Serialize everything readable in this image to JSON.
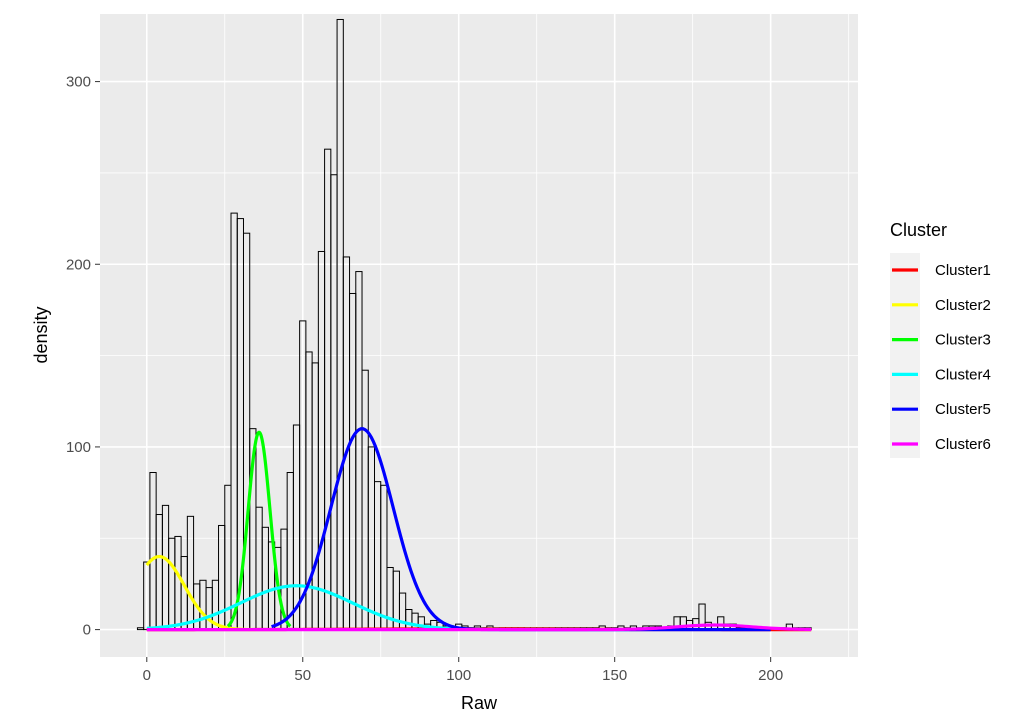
{
  "chart_data": {
    "type": "bar",
    "subtype": "histogram-with-density-curves",
    "xlabel": "Raw",
    "ylabel": "density",
    "xlim": [
      -15,
      228
    ],
    "ylim": [
      -15,
      337
    ],
    "x_ticks": [
      0,
      50,
      100,
      150,
      200
    ],
    "y_ticks": [
      0,
      100,
      200,
      300
    ],
    "grid": true,
    "legend_placement": "right",
    "legend_title": "Cluster",
    "bins": {
      "start": -3,
      "width": 2,
      "values": [
        1,
        37,
        86,
        63,
        68,
        50,
        51,
        40,
        62,
        25,
        27,
        23,
        27,
        57,
        79,
        228,
        225,
        217,
        110,
        67,
        56,
        48,
        45,
        55,
        86,
        112,
        169,
        152,
        146,
        207,
        263,
        249,
        334,
        204,
        184,
        196,
        142,
        100,
        81,
        79,
        34,
        32,
        20,
        11,
        9,
        7,
        3,
        5,
        4,
        2,
        1,
        3,
        2,
        1,
        2,
        1,
        2,
        1,
        1,
        1,
        1,
        1,
        1,
        1,
        1,
        1,
        1,
        1,
        1,
        1,
        1,
        1,
        1,
        1,
        2,
        1,
        1,
        2,
        1,
        2,
        1,
        2,
        2,
        2,
        1,
        2,
        7,
        7,
        5,
        6,
        14,
        4,
        3,
        7,
        3,
        3,
        1,
        1,
        1,
        1,
        1,
        1,
        1,
        1,
        3,
        1,
        1,
        1
      ]
    },
    "series": [
      {
        "name": "Cluster1",
        "color": "#ff0000",
        "type": "normal",
        "mean": 100,
        "sd": 30,
        "peak": 0.4,
        "x_range": [
          0,
          213
        ]
      },
      {
        "name": "Cluster2",
        "color": "#ffff00",
        "type": "normal",
        "mean": 4,
        "sd": 8,
        "peak": 40,
        "x_range": [
          0,
          35
        ]
      },
      {
        "name": "Cluster3",
        "color": "#00ff00",
        "type": "normal",
        "mean": 36,
        "sd": 3.5,
        "peak": 108,
        "x_range": [
          26,
          46
        ]
      },
      {
        "name": "Cluster4",
        "color": "#00ffff",
        "type": "normal",
        "mean": 48,
        "sd": 18,
        "peak": 24,
        "x_range": [
          0,
          120
        ]
      },
      {
        "name": "Cluster5",
        "color": "#0000ff",
        "type": "normal",
        "mean": 69,
        "sd": 10,
        "peak": 110,
        "x_range": [
          40,
          200
        ]
      },
      {
        "name": "Cluster6",
        "color": "#ff00ff",
        "type": "normal",
        "mean": 182,
        "sd": 12,
        "peak": 2.5,
        "x_range": [
          0,
          213
        ]
      }
    ]
  }
}
